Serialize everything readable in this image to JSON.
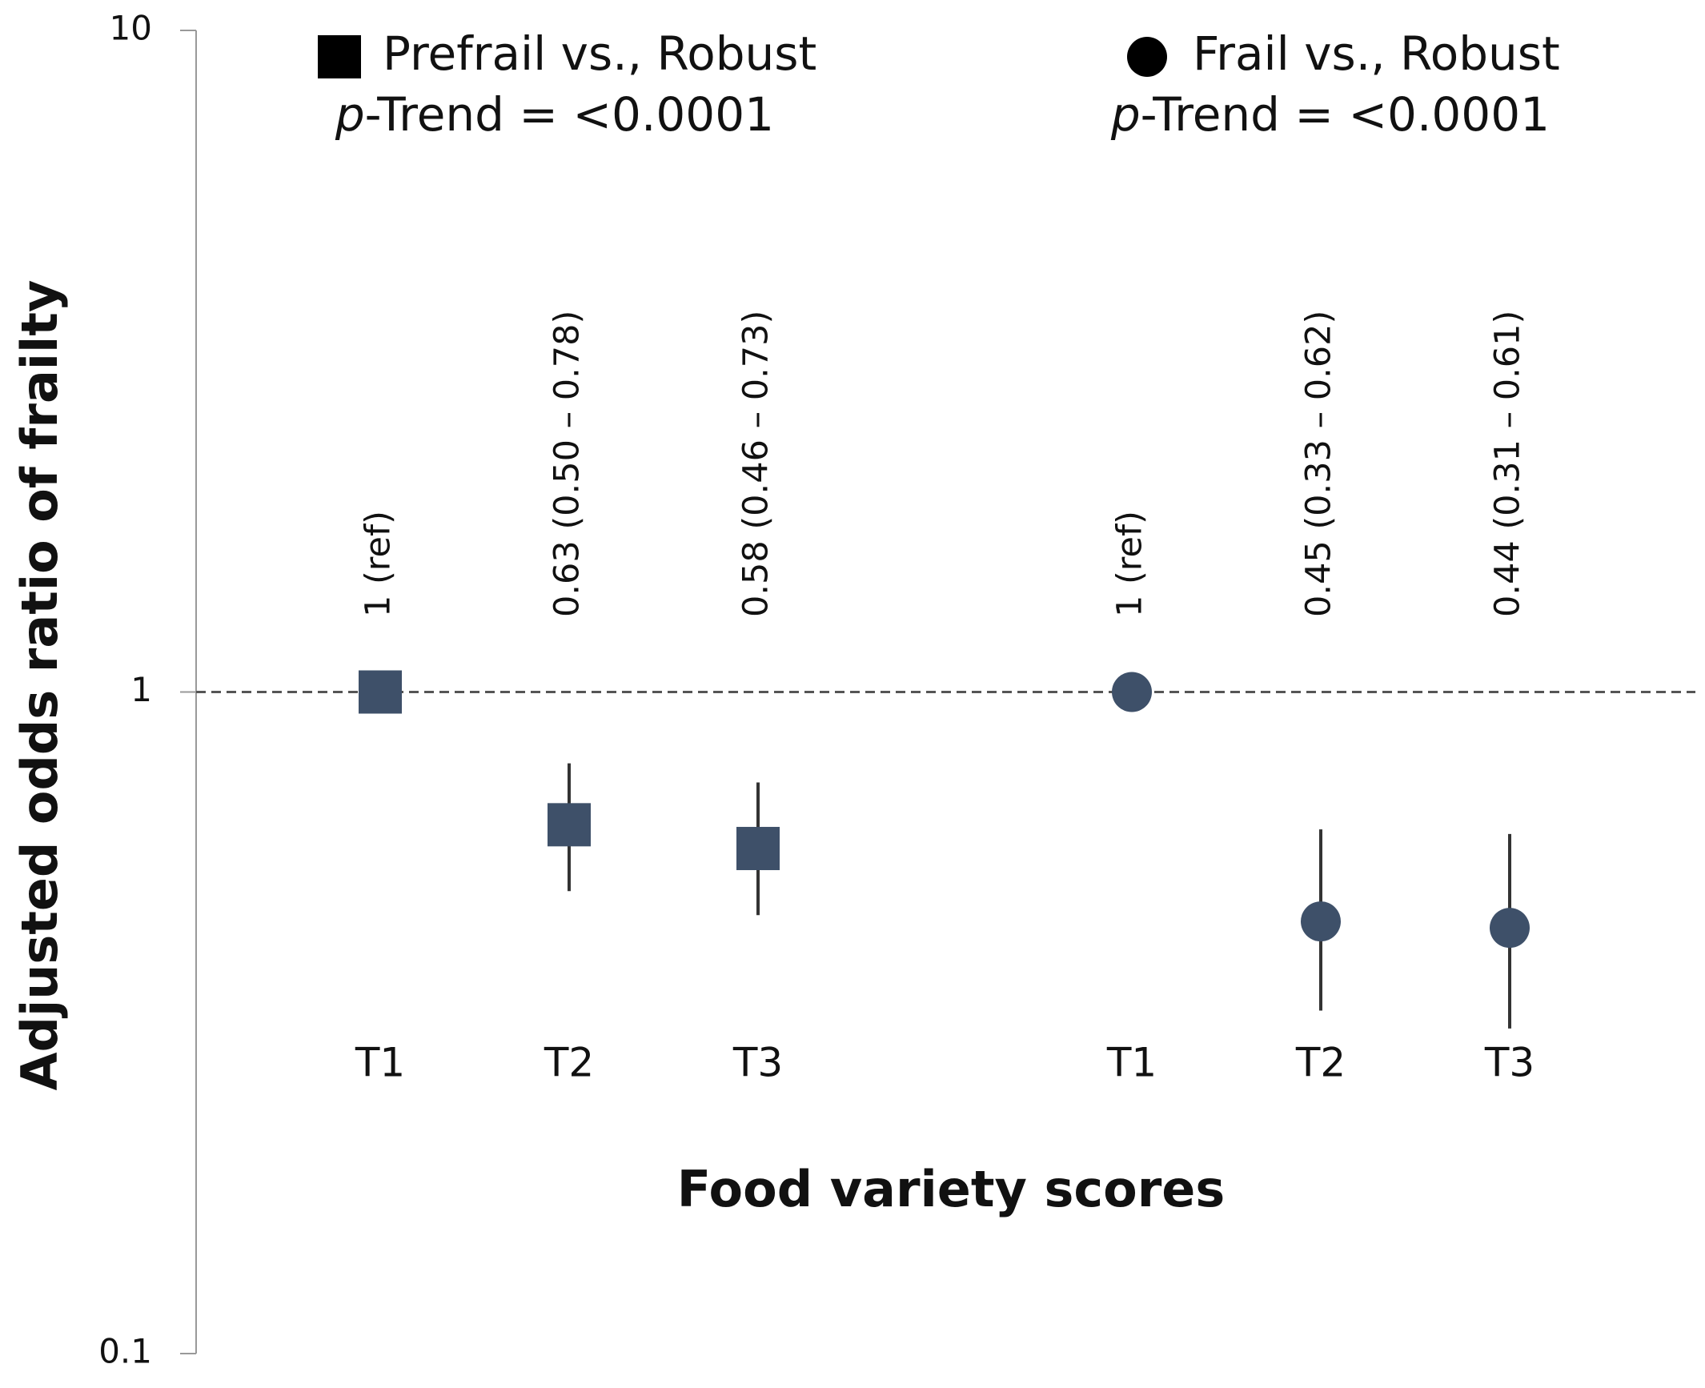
{
  "chart_data": {
    "type": "errorbar",
    "x_label": "Food variety scores",
    "y_label": "Adjusted odds ratio of frailty",
    "categories": [
      "T1",
      "T2",
      "T3",
      "T1",
      "T2",
      "T3"
    ],
    "log_y": true,
    "ylim": [
      0.1,
      10
    ],
    "yticks": [
      0.1,
      1,
      10
    ],
    "reference_line": 1,
    "series": [
      {
        "name": "Prefrail vs., Robust",
        "marker": "square",
        "color": "#3e5069",
        "trend": {
          "italic": "p",
          "rest": "-Trend = <0.0001"
        },
        "values": [
          1,
          0.63,
          0.58,
          null,
          null,
          null
        ],
        "lower": [
          null,
          0.5,
          0.46,
          null,
          null,
          null
        ],
        "upper": [
          null,
          0.78,
          0.73,
          null,
          null,
          null
        ],
        "value_labels": [
          "1 (ref)",
          "0.63 (0.50 – 0.78)",
          "0.58 (0.46 – 0.73)",
          null,
          null,
          null
        ]
      },
      {
        "name": "Frail vs., Robust",
        "marker": "circle",
        "color": "#3e5069",
        "trend": {
          "italic": "p",
          "rest": "-Trend = <0.0001"
        },
        "values": [
          null,
          null,
          null,
          1,
          0.45,
          0.44
        ],
        "lower": [
          null,
          null,
          null,
          null,
          0.33,
          0.31
        ],
        "upper": [
          null,
          null,
          null,
          null,
          0.62,
          0.61
        ],
        "value_labels": [
          null,
          null,
          null,
          "1 (ref)",
          "0.45 (0.33 – 0.62)",
          "0.44 (0.31 – 0.61)"
        ]
      }
    ]
  }
}
